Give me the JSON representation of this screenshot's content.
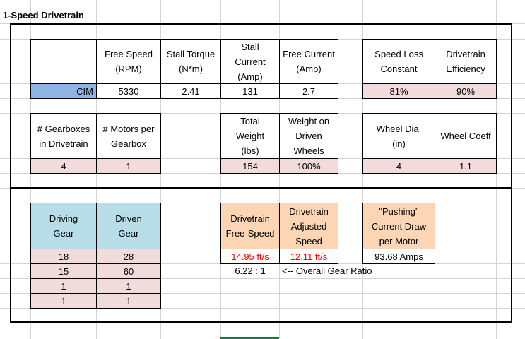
{
  "sheet_title": "1-Speed Drivetrain",
  "motor_table": {
    "headers": [
      "Free Speed (RPM)",
      "Stall Torque (N*m)",
      "Stall Current (Amp)",
      "Free Current (Amp)"
    ],
    "motor_name": "CIM",
    "values": [
      "5330",
      "2.41",
      "131",
      "2.7"
    ]
  },
  "loss_table": {
    "headers": [
      "Speed Loss Constant",
      "Drivetrain Efficiency"
    ],
    "values": [
      "81%",
      "90%"
    ]
  },
  "gearbox_table": {
    "headers": [
      "# Gearboxes in Drivetrain",
      "# Motors per Gearbox"
    ],
    "values": [
      "4",
      "1"
    ]
  },
  "weight_table": {
    "headers": [
      "Total Weight (lbs)",
      "Weight on Driven Wheels"
    ],
    "values": [
      "154",
      "100%"
    ]
  },
  "wheel_table": {
    "headers": [
      "Wheel Dia. (in)",
      "Wheel Coeff"
    ],
    "values": [
      "4",
      "1.1"
    ]
  },
  "gear_table": {
    "headers": [
      "Driving Gear",
      "Driven Gear"
    ],
    "rows": [
      [
        "18",
        "28"
      ],
      [
        "15",
        "60"
      ],
      [
        "1",
        "1"
      ],
      [
        "1",
        "1"
      ]
    ]
  },
  "results": {
    "free_speed_header": "Drivetrain Free-Speed",
    "adjusted_speed_header": "Drivetrain Adjusted Speed",
    "current_header": "\"Pushing\" Current Draw per Motor",
    "free_speed": "14.95 ft/s",
    "adjusted_speed": "12.11 ft/s",
    "current_draw": "93.68 Amps",
    "gear_ratio": "6.22 : 1",
    "gear_ratio_label": "<-- Overall Gear Ratio"
  },
  "colors": {
    "input_fill": "#f2dcdb",
    "motor_fill": "#8db4e2",
    "gear_header_fill": "#b7dee8",
    "result_header_fill": "#fcd5b4",
    "result_text": "#ff0000"
  }
}
